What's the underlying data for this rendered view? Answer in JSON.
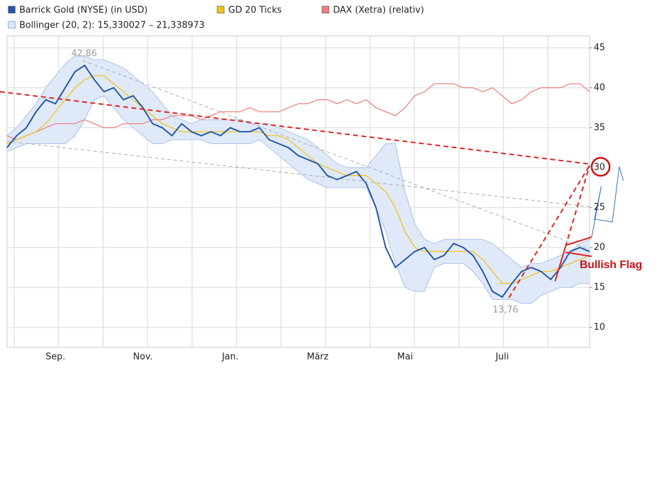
{
  "chart_data": {
    "type": "line",
    "categories": [
      null,
      null,
      null,
      null,
      null,
      "Sep.",
      null,
      null,
      null,
      null,
      null,
      null,
      null,
      null,
      "Nov.",
      null,
      null,
      null,
      null,
      null,
      null,
      null,
      null,
      "Jan.",
      null,
      null,
      null,
      null,
      null,
      null,
      null,
      null,
      "März",
      null,
      null,
      null,
      null,
      null,
      null,
      null,
      null,
      "Mai",
      null,
      null,
      null,
      null,
      null,
      null,
      null,
      null,
      null,
      "Juli",
      null,
      null,
      null,
      null,
      null,
      null,
      null,
      null,
      null
    ],
    "series": [
      {
        "name": "Barrick Gold (NYSE) (in USD)",
        "color": "#2457a8",
        "values": [
          32.5,
          34,
          35,
          37,
          38.5,
          38,
          40,
          42,
          42.8,
          41,
          39.5,
          40,
          38.5,
          39,
          37.5,
          35.5,
          35,
          34,
          35.5,
          34.5,
          34,
          34.5,
          34,
          35,
          34.5,
          34.5,
          35,
          33.5,
          33,
          32.5,
          31.5,
          31,
          30.5,
          29,
          28.5,
          29,
          29.5,
          28,
          25,
          20,
          17.5,
          18.5,
          19.5,
          20,
          18.5,
          19,
          20.5,
          20,
          19,
          17,
          14.5,
          13.8,
          15.5,
          17,
          17.5,
          17,
          16,
          17.5,
          19.5,
          20,
          19.5
        ]
      },
      {
        "name": "GD 20 Ticks",
        "color": "#f0c419",
        "values": [
          33,
          33.5,
          34,
          34.5,
          35.5,
          37,
          38.5,
          40,
          41,
          41.5,
          41.5,
          40.5,
          39.5,
          38.5,
          37.5,
          36.5,
          35.5,
          35,
          34.5,
          34.5,
          34.5,
          34.5,
          34.5,
          34.5,
          34.5,
          34.5,
          34.5,
          34,
          34,
          33.5,
          32.5,
          31.5,
          30.5,
          30,
          29.5,
          29,
          29,
          29,
          28,
          27,
          25,
          22,
          20,
          19.5,
          19.5,
          19.5,
          19.5,
          19.5,
          19.5,
          18.5,
          17,
          15.5,
          15.5,
          16,
          16.5,
          17,
          17,
          17.5,
          18,
          18.5,
          19
        ]
      },
      {
        "name": "DAX (Xetra) (relativ)",
        "color": "#ee8080",
        "values": [
          34,
          33.5,
          34,
          34.5,
          35,
          35.5,
          35.5,
          35.5,
          36,
          35.5,
          35,
          35,
          35.5,
          35.5,
          35.5,
          36,
          36,
          36.5,
          36.5,
          36.5,
          36,
          36.5,
          37,
          37,
          37,
          37.5,
          37,
          37,
          37,
          37.5,
          38,
          38,
          38.5,
          38.5,
          38,
          38.5,
          38,
          38.5,
          37.5,
          37,
          36.5,
          37.5,
          39,
          39.5,
          40.5,
          40.5,
          40.5,
          40,
          40,
          39.5,
          40,
          39,
          38,
          38.5,
          39.5,
          40,
          40,
          40,
          40.5,
          40.5,
          39.5
        ]
      }
    ],
    "band": {
      "name": "Bollinger (20, 2): 15,330027 – 21,338973",
      "color": "#a9c1e8",
      "fill": "#dfe9f8",
      "upper": [
        34,
        35,
        36.5,
        38,
        40,
        41.5,
        43,
        44,
        44,
        43.5,
        43.5,
        43,
        42.5,
        41.5,
        40.5,
        39.5,
        38,
        36.5,
        36,
        35.5,
        36,
        36,
        36,
        36,
        36,
        35.5,
        35.5,
        35.5,
        35,
        34.5,
        34,
        33.5,
        32.5,
        31.5,
        30.5,
        30,
        30,
        30,
        31.5,
        33,
        33,
        27,
        23,
        21,
        20.5,
        21,
        21,
        21,
        21,
        21,
        20.5,
        19.5,
        18.5,
        17.5,
        18,
        18,
        18.5,
        19,
        19.5,
        20.5,
        21
      ],
      "lower": [
        32,
        32.5,
        33,
        33,
        33,
        33,
        33,
        34,
        36,
        38.5,
        39,
        37.5,
        36,
        35,
        34,
        33,
        33,
        33.5,
        33.5,
        33.5,
        33.5,
        33,
        33,
        33,
        33,
        33,
        33.5,
        32.5,
        31.5,
        30.5,
        29.5,
        28.5,
        28,
        27.5,
        27.5,
        27.5,
        27.5,
        27.5,
        25,
        22,
        18,
        15,
        14.5,
        14.5,
        17.5,
        18,
        18,
        18,
        17,
        15.5,
        13.5,
        13.5,
        13.5,
        13,
        13,
        14,
        14.5,
        15,
        15,
        15.5,
        15.5
      ]
    },
    "ylim": [
      7.5,
      46.5
    ],
    "yticks": [
      10,
      15,
      20,
      25,
      30,
      35,
      40,
      45
    ],
    "grid": true,
    "annotations": {
      "high": "42,86",
      "low": "13,76",
      "pattern": "Bullish Flag"
    }
  }
}
